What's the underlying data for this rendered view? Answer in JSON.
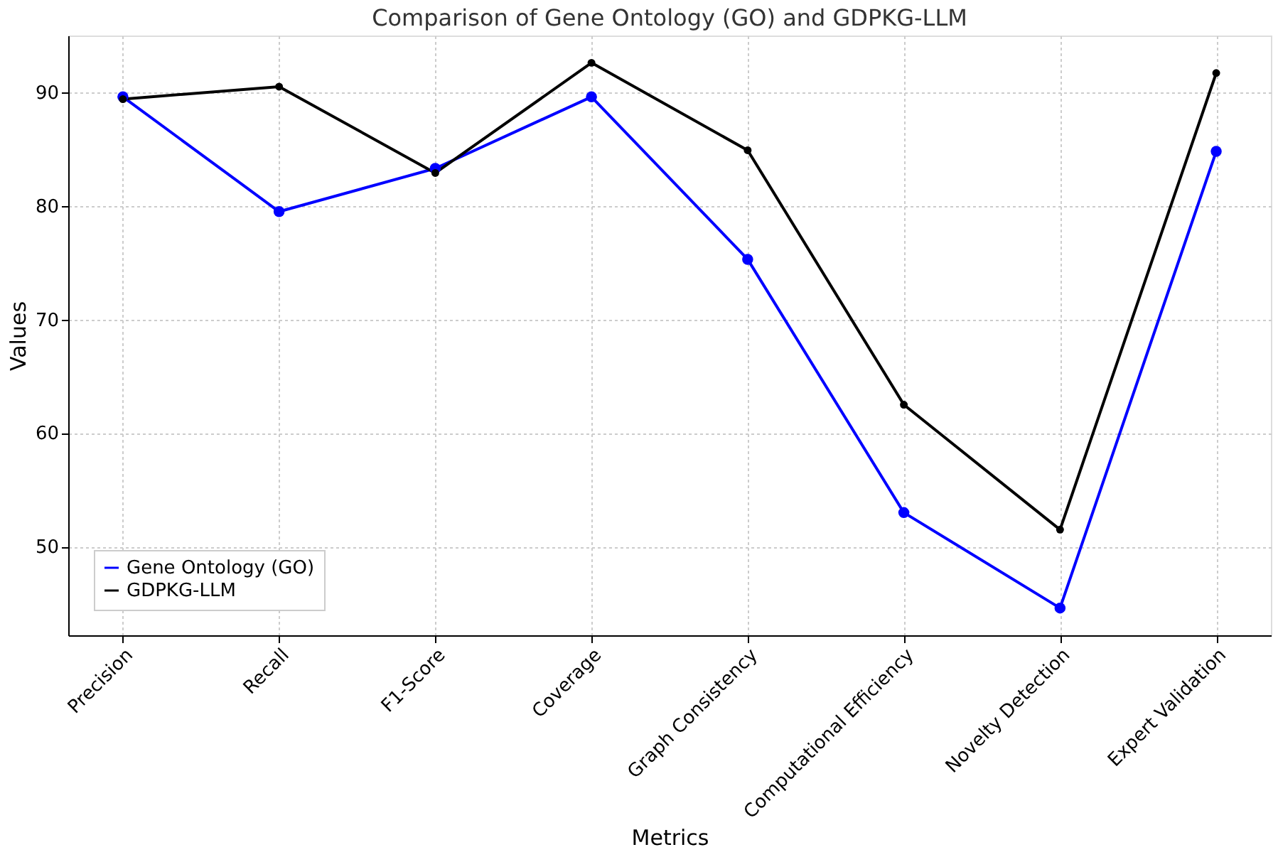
{
  "chart_data": {
    "type": "line",
    "title": "Comparison of Gene Ontology (GO) and GDPKG-LLM",
    "xlabel": "Metrics",
    "ylabel": "Values",
    "categories": [
      "Precision",
      "Recall",
      "F1-Score",
      "Coverage",
      "Graph Consistency",
      "Computational Efficiency",
      "Novelty Detection",
      "Expert Validation"
    ],
    "series": [
      {
        "name": "Gene Ontology (GO)",
        "color": "#0000ff",
        "values": [
          89.6,
          79.5,
          83.3,
          89.6,
          75.3,
          53.0,
          44.6,
          84.8
        ]
      },
      {
        "name": "GDPKG-LLM",
        "color": "#000000",
        "values": [
          89.4,
          90.5,
          82.9,
          92.6,
          84.9,
          62.5,
          51.5,
          91.7
        ]
      }
    ],
    "ylim": [
      42.2,
      95.0
    ],
    "yticks": [
      50,
      60,
      70,
      80,
      90
    ],
    "grid": true,
    "legend": "bottom left",
    "marker": "circle",
    "line_style": "solid"
  }
}
